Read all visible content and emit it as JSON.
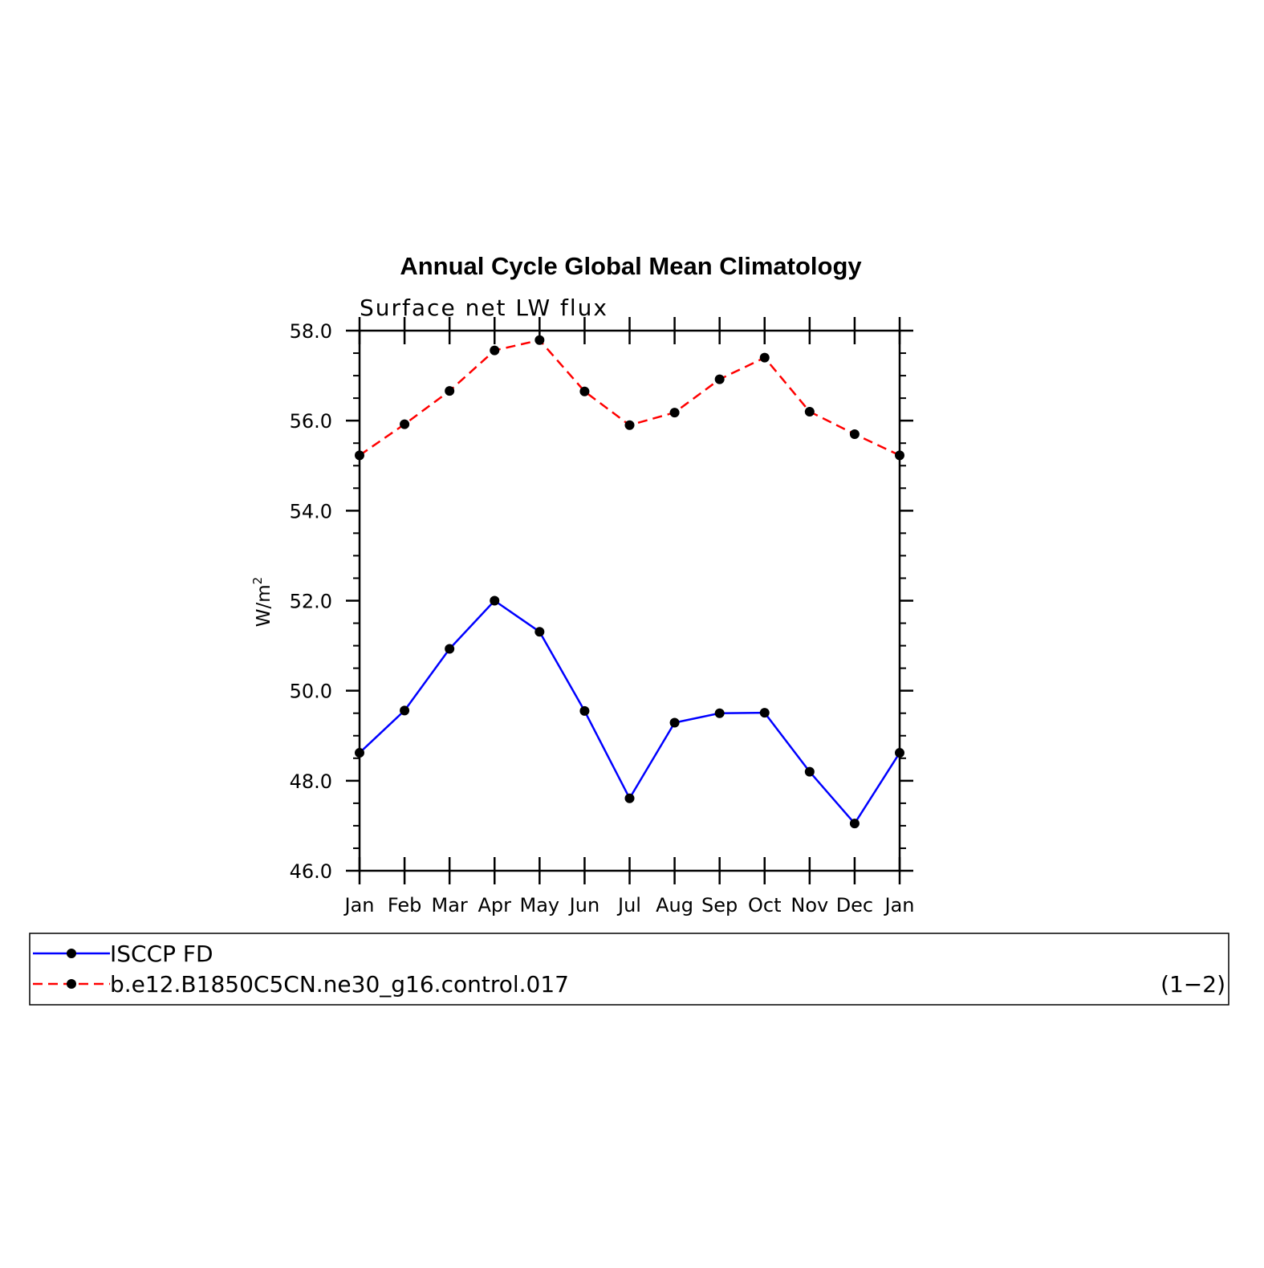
{
  "chart_data": {
    "type": "line",
    "title": "Annual Cycle Global Mean Climatology",
    "subtitle": "Surface net LW flux",
    "ylabel": "W/m",
    "ylabel_superscript": "2",
    "xlabel": "",
    "categories": [
      "Jan",
      "Feb",
      "Mar",
      "Apr",
      "May",
      "Jun",
      "Jul",
      "Aug",
      "Sep",
      "Oct",
      "Nov",
      "Dec",
      "Jan"
    ],
    "ylim": [
      46.0,
      58.0
    ],
    "yticks": [
      "46.0",
      "48.0",
      "50.0",
      "52.0",
      "54.0",
      "56.0",
      "58.0"
    ],
    "grid": false,
    "series": [
      {
        "name": "ISCCP FD",
        "color": "#0000ff",
        "dash": "solid",
        "marker": "filled-circle",
        "values": [
          48.62,
          49.56,
          50.93,
          52.0,
          51.31,
          49.55,
          47.61,
          49.29,
          49.5,
          49.51,
          48.2,
          47.05,
          48.62
        ]
      },
      {
        "name": "b.e12.B1850C5CN.ne30_g16.control.017",
        "color": "#ff0000",
        "dash": "dashed",
        "marker": "filled-circle",
        "values": [
          55.23,
          55.92,
          56.66,
          57.56,
          57.79,
          56.65,
          55.9,
          56.18,
          56.92,
          57.4,
          56.2,
          55.7,
          55.23
        ]
      }
    ],
    "legend": {
      "placement": "bottom",
      "panel_label": "(1−2)"
    }
  }
}
